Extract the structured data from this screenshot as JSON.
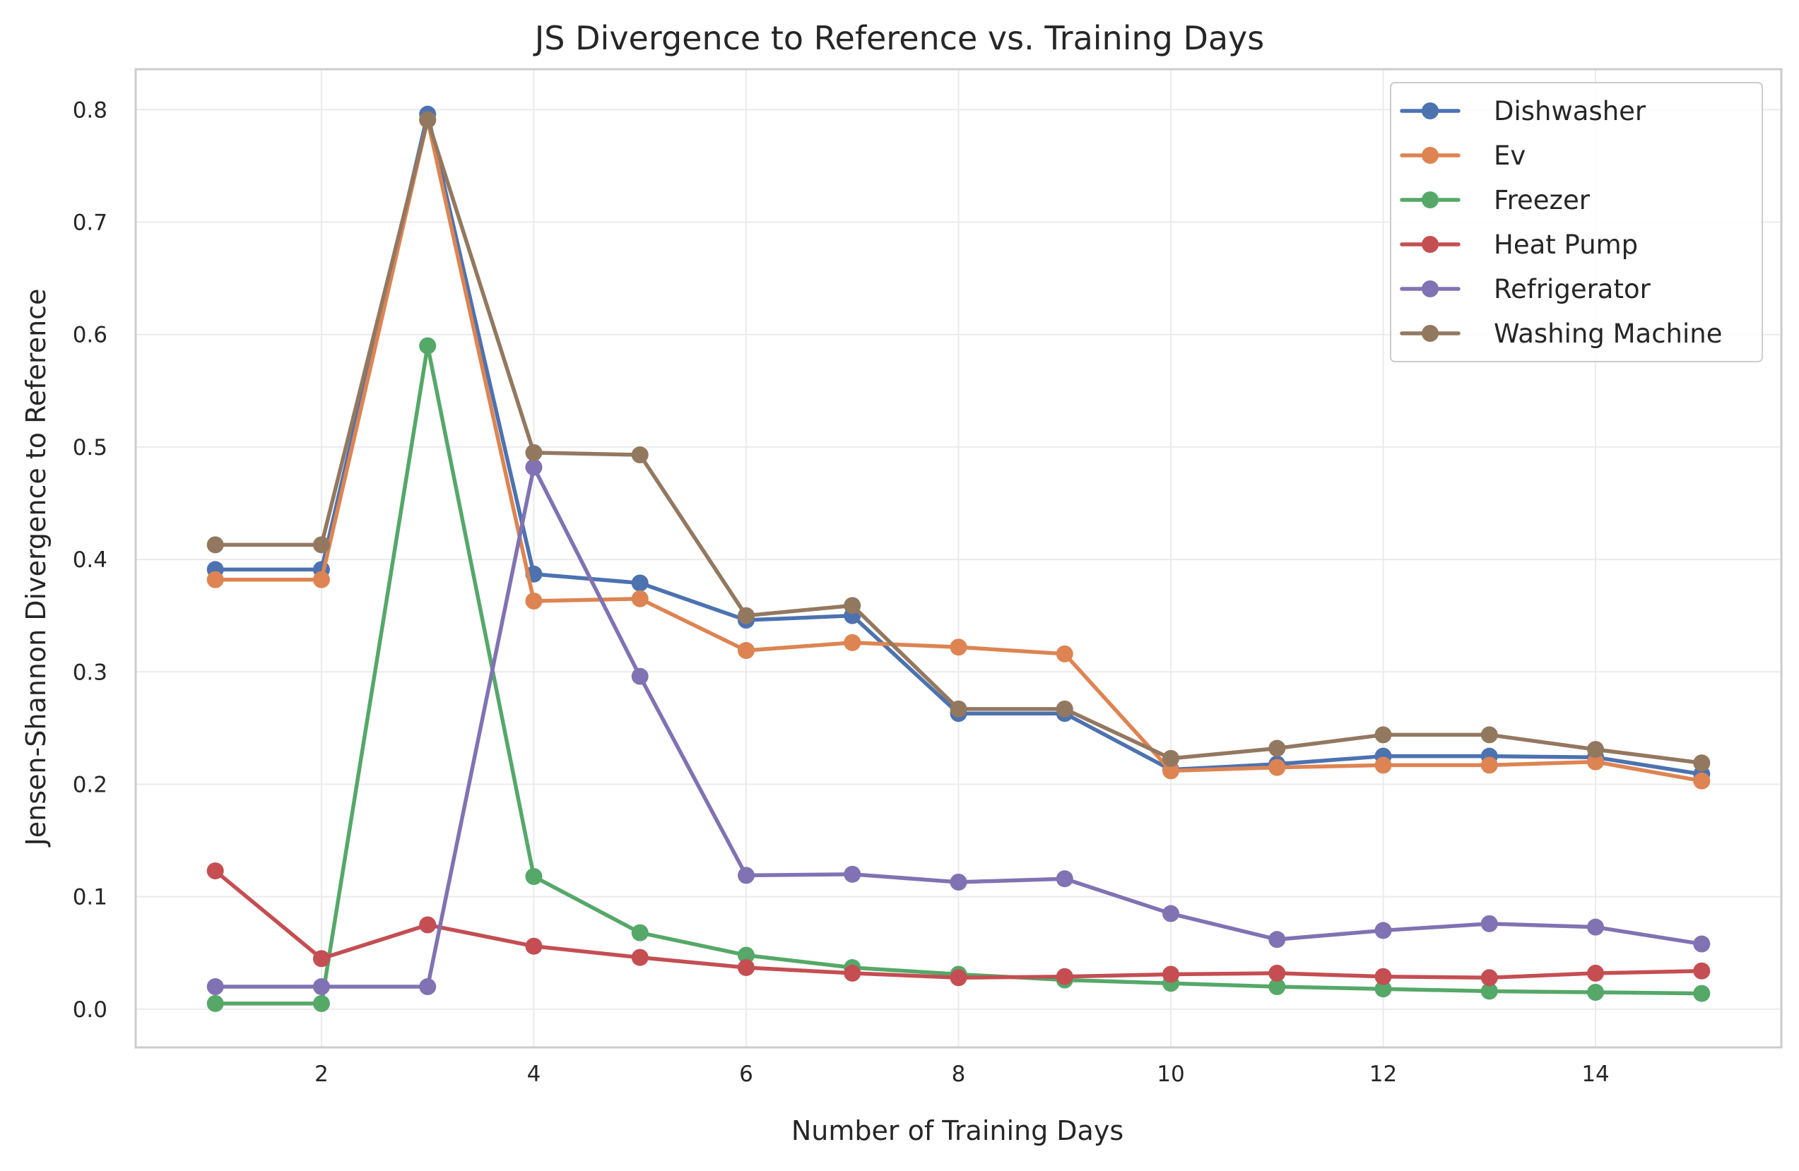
{
  "chart_data": {
    "type": "line",
    "title": "JS Divergence to Reference vs. Training Days",
    "xlabel": "Number of Training Days",
    "ylabel": "Jensen-Shannon Divergence to Reference",
    "xlim": [
      0.25,
      15.75
    ],
    "ylim": [
      -0.034,
      0.836
    ],
    "xticks": [
      2,
      4,
      6,
      8,
      10,
      12,
      14
    ],
    "yticks": [
      0.0,
      0.1,
      0.2,
      0.3,
      0.4,
      0.5,
      0.6,
      0.7,
      0.8
    ],
    "ytick_labels": [
      "0.0",
      "0.1",
      "0.2",
      "0.3",
      "0.4",
      "0.5",
      "0.6",
      "0.7",
      "0.8"
    ],
    "grid": true,
    "legend_position": "top-right",
    "x": [
      1,
      2,
      3,
      4,
      5,
      6,
      7,
      8,
      9,
      10,
      11,
      12,
      13,
      14,
      15
    ],
    "series": [
      {
        "name": "Dishwasher",
        "color": "#4c72b0",
        "values": [
          0.391,
          0.391,
          0.796,
          0.387,
          0.379,
          0.346,
          0.35,
          0.263,
          0.263,
          0.213,
          0.218,
          0.225,
          0.225,
          0.224,
          0.209
        ]
      },
      {
        "name": "Ev",
        "color": "#dd8452",
        "values": [
          0.382,
          0.382,
          0.791,
          0.363,
          0.365,
          0.319,
          0.326,
          0.322,
          0.316,
          0.212,
          0.215,
          0.217,
          0.217,
          0.22,
          0.203
        ]
      },
      {
        "name": "Freezer",
        "color": "#55a868",
        "values": [
          0.005,
          0.005,
          0.59,
          0.118,
          0.068,
          0.048,
          0.037,
          0.031,
          0.026,
          0.023,
          0.02,
          0.018,
          0.016,
          0.015,
          0.014
        ]
      },
      {
        "name": "Heat Pump",
        "color": "#c44e52",
        "values": [
          0.123,
          0.045,
          0.075,
          0.056,
          0.046,
          0.037,
          0.032,
          0.028,
          0.029,
          0.031,
          0.032,
          0.029,
          0.028,
          0.032,
          0.034
        ]
      },
      {
        "name": "Refrigerator",
        "color": "#8172b3",
        "values": [
          0.02,
          0.02,
          0.02,
          0.482,
          0.296,
          0.119,
          0.12,
          0.113,
          0.116,
          0.085,
          0.062,
          0.07,
          0.076,
          0.073,
          0.058
        ]
      },
      {
        "name": "Washing Machine",
        "color": "#937860",
        "values": [
          0.413,
          0.413,
          0.791,
          0.495,
          0.493,
          0.35,
          0.359,
          0.267,
          0.267,
          0.223,
          0.232,
          0.244,
          0.244,
          0.231,
          0.219
        ]
      }
    ]
  }
}
